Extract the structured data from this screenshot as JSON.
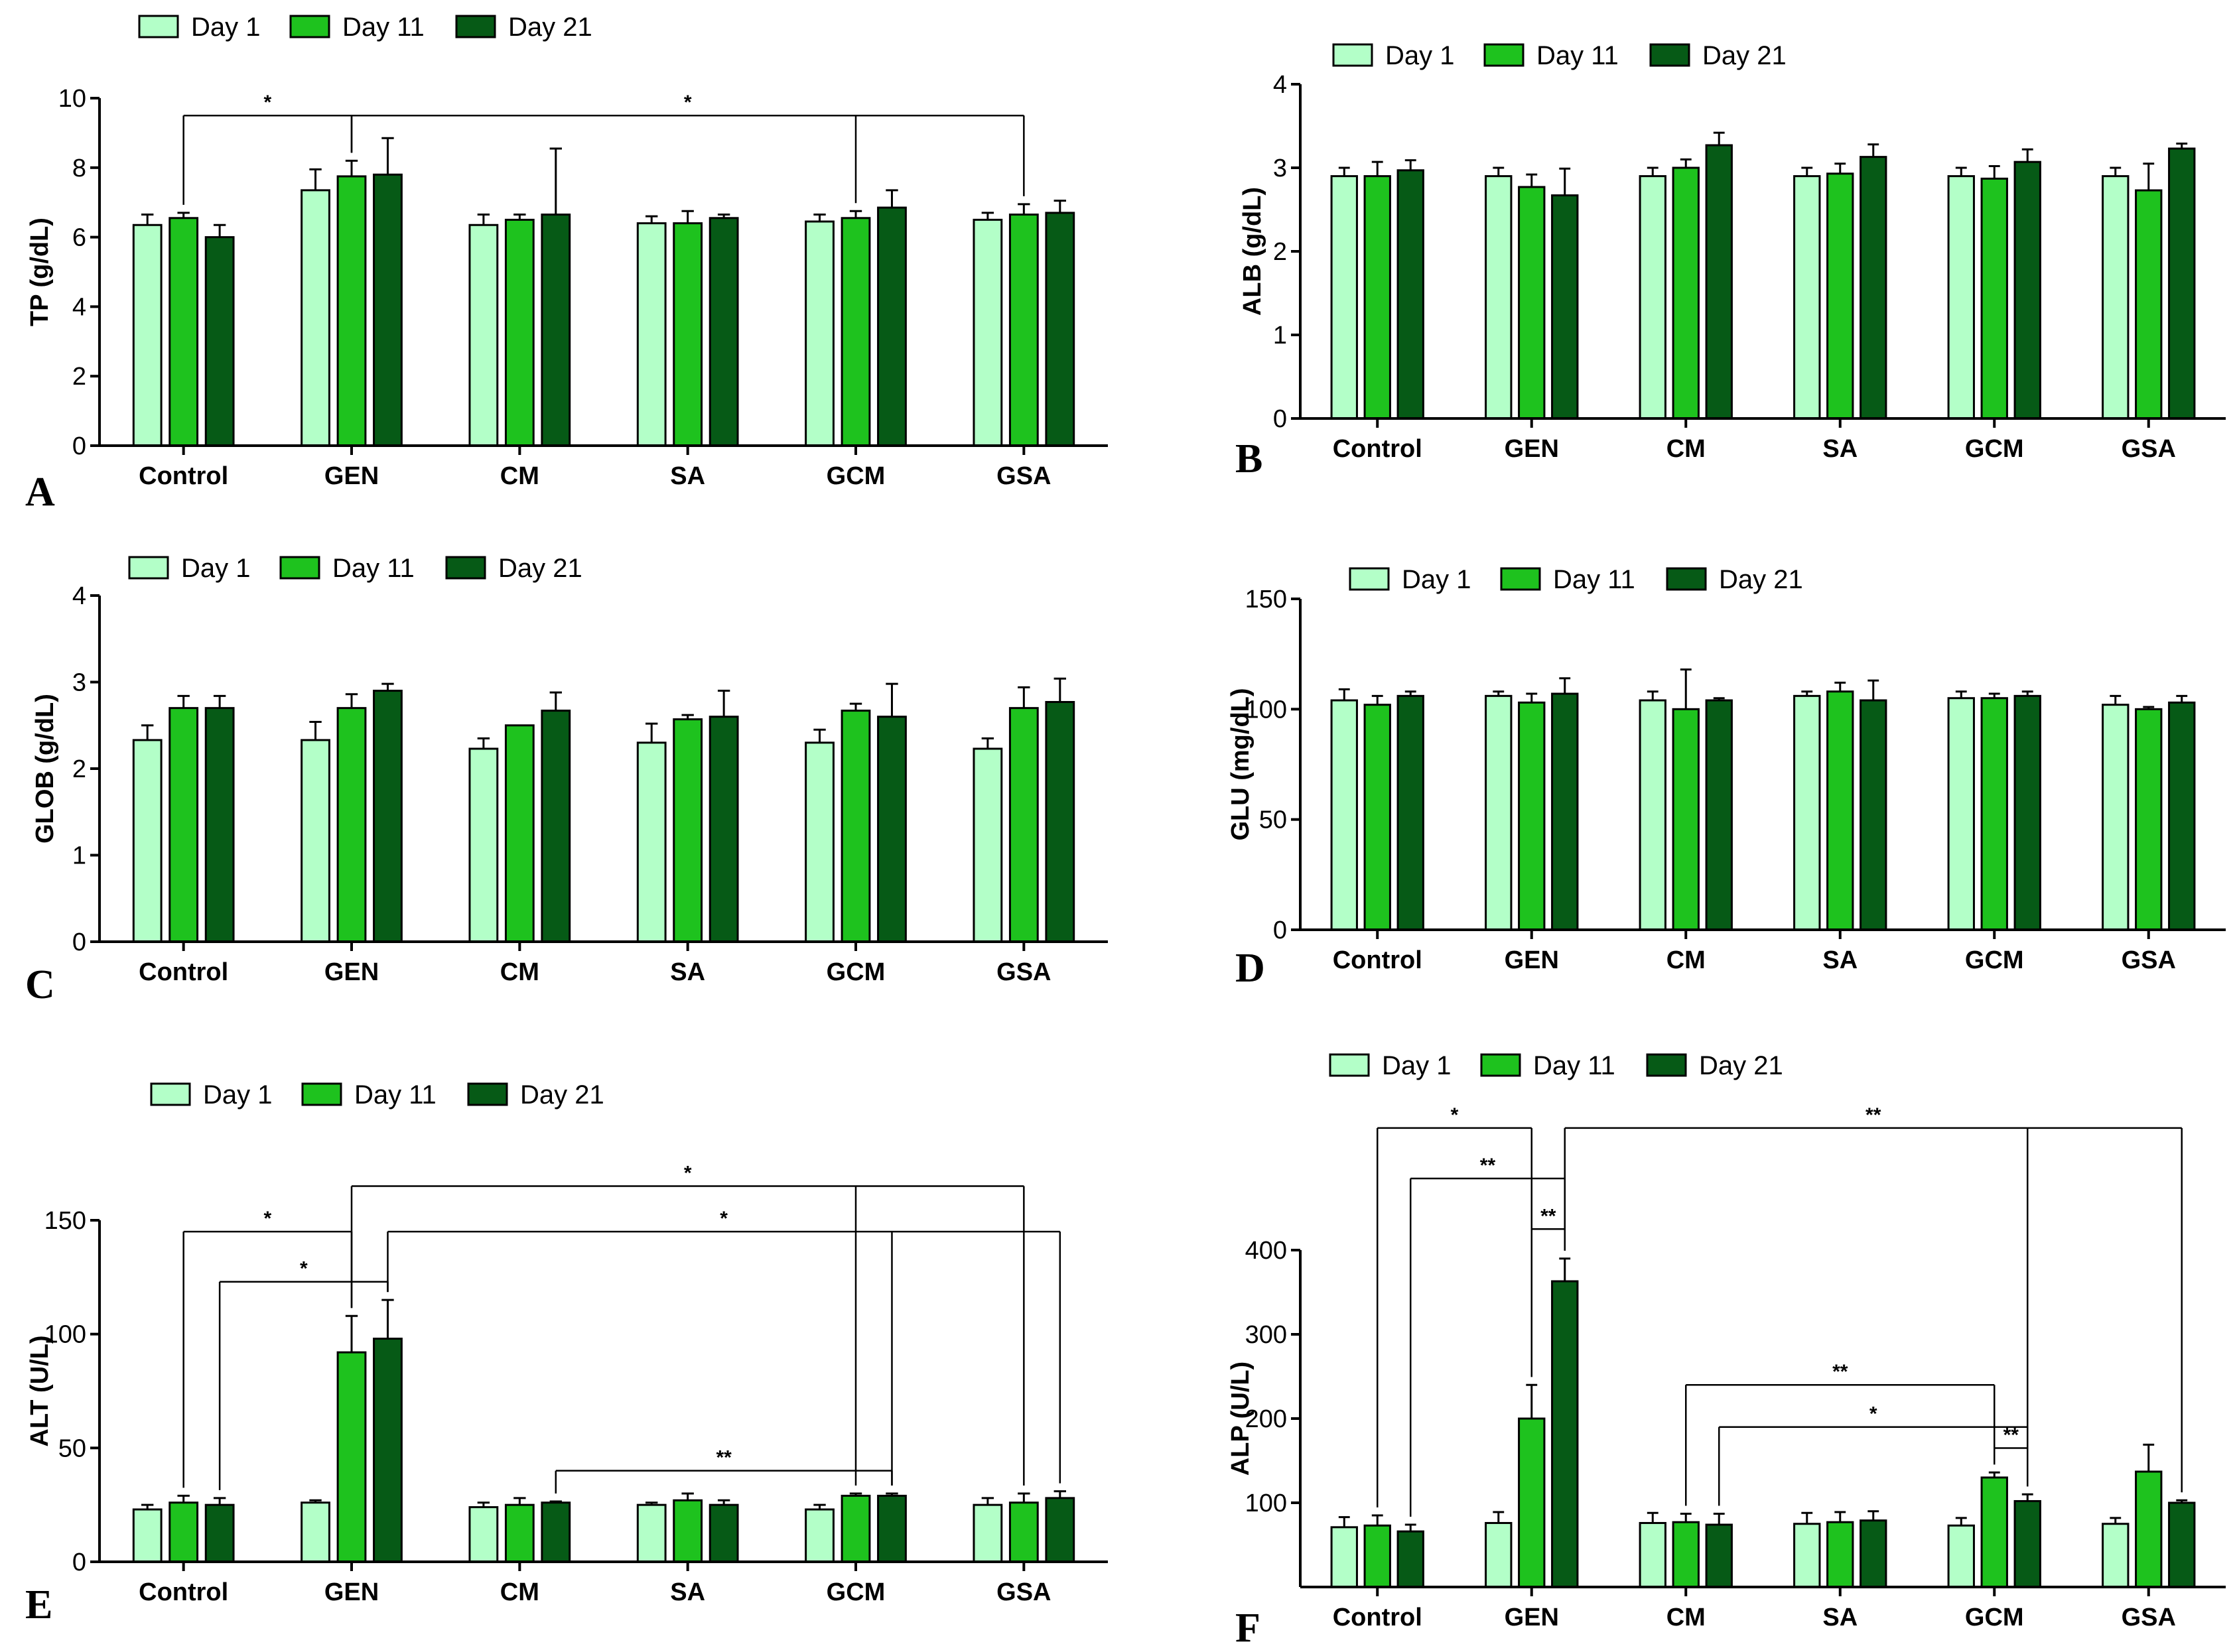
{
  "colors": {
    "day1": "#b3ffc8",
    "day11": "#1ec21e",
    "day21": "#065a16",
    "stroke": "#000000"
  },
  "legend": [
    "Day 1",
    "Day 11",
    "Day 21"
  ],
  "chart_data": [
    {
      "panel": "A",
      "type": "bar",
      "ylabel": "TP (g/dL)",
      "ylim": [
        0,
        10
      ],
      "yticks": [
        0,
        2,
        4,
        6,
        8,
        10
      ],
      "categories": [
        "Control",
        "GEN",
        "CM",
        "SA",
        "GCM",
        "GSA"
      ],
      "series": [
        {
          "name": "Day 1",
          "values": [
            6.35,
            7.35,
            6.35,
            6.4,
            6.45,
            6.5
          ],
          "errors": [
            0.3,
            0.6,
            0.3,
            0.2,
            0.2,
            0.2
          ]
        },
        {
          "name": "Day 11",
          "values": [
            6.55,
            7.75,
            6.5,
            6.4,
            6.55,
            6.65
          ],
          "errors": [
            0.15,
            0.45,
            0.15,
            0.35,
            0.2,
            0.3
          ]
        },
        {
          "name": "Day 21",
          "values": [
            6.0,
            7.8,
            6.65,
            6.55,
            6.85,
            6.7
          ],
          "errors": [
            0.35,
            1.05,
            1.9,
            0.1,
            0.5,
            0.35
          ]
        }
      ],
      "annotations": [
        {
          "label": "*",
          "from": [
            0,
            1
          ],
          "to": [
            1,
            1
          ],
          "level": 9.5
        },
        {
          "label": "*",
          "from": [
            1,
            1
          ],
          "to": [
            4,
            1
          ],
          "level": 9.5,
          "extra_ends": [
            [
              5,
              1
            ]
          ]
        }
      ]
    },
    {
      "panel": "B",
      "type": "bar",
      "ylabel": "ALB (g/dL)",
      "ylim": [
        0,
        4
      ],
      "yticks": [
        0,
        1,
        2,
        3,
        4
      ],
      "categories": [
        "Control",
        "GEN",
        "CM",
        "SA",
        "GCM",
        "GSA"
      ],
      "series": [
        {
          "name": "Day 1",
          "values": [
            2.9,
            2.9,
            2.9,
            2.9,
            2.9,
            2.9
          ],
          "errors": [
            0.1,
            0.1,
            0.1,
            0.1,
            0.1,
            0.1
          ]
        },
        {
          "name": "Day 11",
          "values": [
            2.9,
            2.77,
            3.0,
            2.93,
            2.87,
            2.73
          ],
          "errors": [
            0.17,
            0.15,
            0.1,
            0.12,
            0.15,
            0.32
          ]
        },
        {
          "name": "Day 21",
          "values": [
            2.97,
            2.67,
            3.27,
            3.13,
            3.07,
            3.23
          ],
          "errors": [
            0.12,
            0.32,
            0.15,
            0.15,
            0.15,
            0.06
          ]
        }
      ],
      "annotations": []
    },
    {
      "panel": "C",
      "type": "bar",
      "ylabel": "GLOB (g/dL)",
      "ylim": [
        0,
        4
      ],
      "yticks": [
        0,
        1,
        2,
        3,
        4
      ],
      "categories": [
        "Control",
        "GEN",
        "CM",
        "SA",
        "GCM",
        "GSA"
      ],
      "series": [
        {
          "name": "Day 1",
          "values": [
            2.33,
            2.33,
            2.23,
            2.3,
            2.3,
            2.23
          ],
          "errors": [
            0.17,
            0.21,
            0.12,
            0.22,
            0.15,
            0.12
          ]
        },
        {
          "name": "Day 11",
          "values": [
            2.7,
            2.7,
            2.5,
            2.57,
            2.67,
            2.7
          ],
          "errors": [
            0.14,
            0.16,
            0.0,
            0.05,
            0.08,
            0.24
          ]
        },
        {
          "name": "Day 21",
          "values": [
            2.7,
            2.9,
            2.67,
            2.6,
            2.6,
            2.77
          ],
          "errors": [
            0.14,
            0.08,
            0.21,
            0.3,
            0.38,
            0.27
          ]
        }
      ],
      "annotations": []
    },
    {
      "panel": "D",
      "type": "bar",
      "ylabel": "GLU (mg/dL)",
      "ylim": [
        0,
        150
      ],
      "yticks": [
        0,
        50,
        100,
        150
      ],
      "categories": [
        "Control",
        "GEN",
        "CM",
        "SA",
        "GCM",
        "GSA"
      ],
      "series": [
        {
          "name": "Day 1",
          "values": [
            104,
            106,
            104,
            106,
            105,
            102
          ],
          "errors": [
            5,
            2,
            4,
            2,
            3,
            4
          ]
        },
        {
          "name": "Day 11",
          "values": [
            102,
            103,
            100,
            108,
            105,
            100
          ],
          "errors": [
            4,
            4,
            18,
            4,
            2,
            1
          ]
        },
        {
          "name": "Day 21",
          "values": [
            106,
            107,
            104,
            104,
            106,
            103
          ],
          "errors": [
            2,
            7,
            1,
            9,
            2,
            3
          ]
        }
      ],
      "annotations": []
    },
    {
      "panel": "E",
      "type": "bar",
      "ylabel": "ALT (U/L)",
      "ylim": [
        0,
        150
      ],
      "yticks": [
        0,
        50,
        100,
        150
      ],
      "categories": [
        "Control",
        "GEN",
        "CM",
        "SA",
        "GCM",
        "GSA"
      ],
      "series": [
        {
          "name": "Day 1",
          "values": [
            23,
            26,
            24,
            25,
            23,
            25
          ],
          "errors": [
            2,
            1,
            2,
            1,
            2,
            3
          ]
        },
        {
          "name": "Day 11",
          "values": [
            26,
            92,
            25,
            27,
            29,
            26
          ],
          "errors": [
            3,
            16,
            3,
            3,
            1,
            4
          ]
        },
        {
          "name": "Day 21",
          "values": [
            25,
            98,
            26,
            25,
            29,
            28
          ],
          "errors": [
            3,
            17,
            0.5,
            2,
            1,
            3
          ]
        }
      ],
      "annotations": [
        {
          "label": "*",
          "from": [
            1,
            1
          ],
          "to": [
            4,
            1
          ],
          "level": 165,
          "extra_ends": [
            [
              5,
              1
            ]
          ]
        },
        {
          "label": "*",
          "from": [
            0,
            1
          ],
          "to": [
            1,
            1
          ],
          "level": 145
        },
        {
          "label": "*",
          "from": [
            1,
            2
          ],
          "to": [
            4,
            2
          ],
          "level": 145,
          "extra_ends": [
            [
              5,
              2
            ]
          ]
        },
        {
          "label": "*",
          "from": [
            0,
            2
          ],
          "to": [
            1,
            2
          ],
          "level": 123
        },
        {
          "label": "**",
          "from": [
            2,
            2
          ],
          "to": [
            4,
            2
          ],
          "level": 40
        }
      ]
    },
    {
      "panel": "F",
      "type": "bar",
      "ylabel": "ALP (U/L)",
      "ylim": [
        0,
        400
      ],
      "yticks": [
        100,
        200,
        300,
        400
      ],
      "categories": [
        "Control",
        "GEN",
        "CM",
        "SA",
        "GCM",
        "GSA"
      ],
      "series": [
        {
          "name": "Day 1",
          "values": [
            71,
            76,
            76,
            75,
            73,
            75
          ],
          "errors": [
            12,
            13,
            12,
            13,
            9,
            7
          ]
        },
        {
          "name": "Day 11",
          "values": [
            73,
            200,
            77,
            77,
            130,
            137
          ],
          "errors": [
            12,
            40,
            10,
            12,
            6,
            32
          ]
        },
        {
          "name": "Day 21",
          "values": [
            66,
            363,
            74,
            79,
            102,
            100
          ],
          "errors": [
            8,
            27,
            13,
            11,
            8,
            3
          ]
        }
      ],
      "annotations": [
        {
          "label": "*",
          "from": [
            0,
            1
          ],
          "to": [
            1,
            1
          ],
          "level": 545
        },
        {
          "label": "**",
          "from": [
            1,
            2
          ],
          "to": [
            4,
            2
          ],
          "level": 545,
          "extra_ends": [
            [
              5,
              2
            ]
          ]
        },
        {
          "label": "**",
          "from": [
            0,
            2
          ],
          "to": [
            1,
            2
          ],
          "level": 485
        },
        {
          "label": "**",
          "from": [
            1,
            1
          ],
          "to": [
            1,
            2
          ],
          "level": 425
        },
        {
          "label": "**",
          "from": [
            2,
            1
          ],
          "to": [
            4,
            1
          ],
          "level": 240
        },
        {
          "label": "*",
          "from": [
            2,
            2
          ],
          "to": [
            4,
            2
          ],
          "level": 190
        },
        {
          "label": "**",
          "from": [
            4,
            1
          ],
          "to": [
            4,
            2
          ],
          "level": 165
        }
      ]
    }
  ]
}
